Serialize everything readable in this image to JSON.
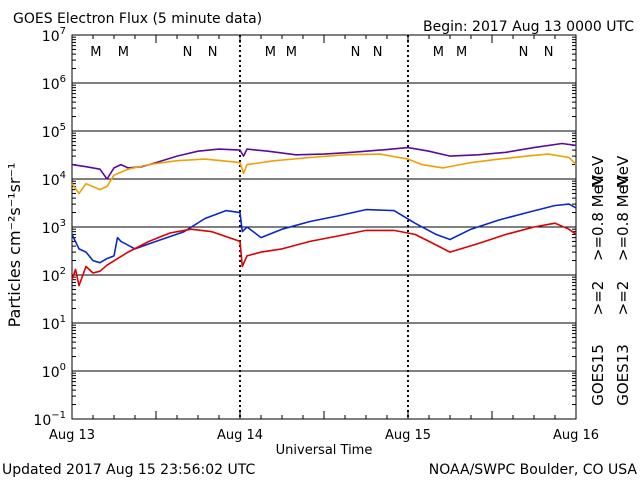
{
  "header": {
    "title": "GOES Electron Flux (5 minute data)",
    "begin": "Begin: 2017 Aug 13 0000 UTC"
  },
  "footer": {
    "updated": "Updated 2017 Aug 15 23:56:02 UTC",
    "source": "NOAA/SWPC Boulder, CO USA"
  },
  "colors": {
    "goes15_high": "#5a0aa0",
    "goes13_high": "#f0a000",
    "goes15_low": "#0a28c8",
    "goes13_low": "#dc0000",
    "magnetopause_m_ref": "#dc0000"
  },
  "chart_data": {
    "type": "line",
    "title": "GOES Electron Flux (5 minute data)",
    "xlabel": "Universal Time",
    "ylabel": "Particles cm⁻²s⁻¹sr⁻¹",
    "y_scale": "log",
    "ylim": [
      0.1,
      10000000
    ],
    "xlim": [
      "2017-08-13 00:00",
      "2017-08-16 00:00"
    ],
    "x_ticks": [
      "Aug 13",
      "Aug 14",
      "Aug 15",
      "Aug 16"
    ],
    "y_tick_exponents": [
      -1,
      0,
      1,
      2,
      3,
      4,
      5,
      6,
      7
    ],
    "threshold": 1000,
    "grid": true,
    "legend_placement": "right, vertical",
    "legend": [
      {
        "name": ">=0.8 MeV",
        "color": "#5a0aa0"
      },
      {
        "name": ">=0.8 MeV",
        "color": "#f0a000"
      },
      {
        "name": ">=2",
        "color": "#0a28c8"
      },
      {
        "name": ">=2",
        "color": "#dc0000"
      }
    ],
    "satellites": [
      "GOES15",
      "GOES13"
    ],
    "unit": "MeV",
    "markers": [
      {
        "label": "M",
        "x": "2017-08-13 03:25",
        "color": "#dc0000"
      },
      {
        "label": "M",
        "x": "2017-08-13 07:20",
        "color": "#0a28c8"
      },
      {
        "label": "N",
        "x": "2017-08-13 16:30",
        "color": "#dc0000"
      },
      {
        "label": "N",
        "x": "2017-08-13 20:05",
        "color": "#0a28c8"
      },
      {
        "label": "M",
        "x": "2017-08-14 04:20",
        "color": "#dc0000"
      },
      {
        "label": "M",
        "x": "2017-08-14 07:20",
        "color": "#0a28c8"
      },
      {
        "label": "N",
        "x": "2017-08-14 16:30",
        "color": "#dc0000"
      },
      {
        "label": "N",
        "x": "2017-08-14 19:40",
        "color": "#0a28c8"
      },
      {
        "label": "M",
        "x": "2017-08-15 04:20",
        "color": "#dc0000"
      },
      {
        "label": "M",
        "x": "2017-08-15 07:40",
        "color": "#0a28c8"
      },
      {
        "label": "N",
        "x": "2017-08-15 16:30",
        "color": "#dc0000"
      },
      {
        "label": "N",
        "x": "2017-08-15 20:05",
        "color": "#0a28c8"
      }
    ],
    "series": [
      {
        "name": "GOES15 >=0.8 MeV",
        "color": "#5a0aa0",
        "x": [
          "2017-08-13 00:00",
          "2017-08-13 02:00",
          "2017-08-13 04:00",
          "2017-08-13 05:00",
          "2017-08-13 06:00",
          "2017-08-13 07:00",
          "2017-08-13 08:00",
          "2017-08-13 10:00",
          "2017-08-13 12:00",
          "2017-08-13 15:00",
          "2017-08-13 18:00",
          "2017-08-13 21:00",
          "2017-08-14 00:00",
          "2017-08-14 00:30",
          "2017-08-14 01:00",
          "2017-08-14 04:00",
          "2017-08-14 08:00",
          "2017-08-14 12:00",
          "2017-08-14 16:00",
          "2017-08-14 20:00",
          "2017-08-15 00:00",
          "2017-08-15 03:00",
          "2017-08-15 06:00",
          "2017-08-15 10:00",
          "2017-08-15 14:00",
          "2017-08-15 18:00",
          "2017-08-15 22:00",
          "2017-08-16 00:00"
        ],
        "y": [
          20000,
          18000,
          16000,
          10000,
          17000,
          20000,
          17000,
          18000,
          22000,
          30000,
          38000,
          42000,
          40000,
          30000,
          42000,
          38000,
          32000,
          33000,
          36000,
          40000,
          45000,
          38000,
          30000,
          32000,
          36000,
          45000,
          55000,
          50000
        ]
      },
      {
        "name": "GOES13 >=0.8 MeV",
        "color": "#f0a000",
        "x": [
          "2017-08-13 00:00",
          "2017-08-13 01:00",
          "2017-08-13 02:00",
          "2017-08-13 04:00",
          "2017-08-13 05:00",
          "2017-08-13 06:00",
          "2017-08-13 08:00",
          "2017-08-13 11:00",
          "2017-08-13 15:00",
          "2017-08-13 19:00",
          "2017-08-14 00:00",
          "2017-08-14 00:30",
          "2017-08-14 01:00",
          "2017-08-14 05:00",
          "2017-08-14 10:00",
          "2017-08-14 15:00",
          "2017-08-14 20:00",
          "2017-08-15 00:00",
          "2017-08-15 02:00",
          "2017-08-15 05:00",
          "2017-08-15 09:00",
          "2017-08-15 13:00",
          "2017-08-15 17:00",
          "2017-08-15 20:00",
          "2017-08-15 23:00",
          "2017-08-16 00:00"
        ],
        "y": [
          8000,
          5000,
          8000,
          6000,
          7000,
          12000,
          16000,
          20000,
          24000,
          26000,
          22000,
          13000,
          20000,
          24000,
          28000,
          32000,
          33000,
          26000,
          20000,
          17000,
          22000,
          26000,
          30000,
          33000,
          28000,
          20000
        ]
      },
      {
        "name": "GOES15 >=2 MeV",
        "color": "#0a28c8",
        "x": [
          "2017-08-13 00:00",
          "2017-08-13 01:00",
          "2017-08-13 02:00",
          "2017-08-13 03:00",
          "2017-08-13 04:00",
          "2017-08-13 05:00",
          "2017-08-13 06:00",
          "2017-08-13 06:30",
          "2017-08-13 07:00",
          "2017-08-13 09:00",
          "2017-08-13 12:00",
          "2017-08-13 16:00",
          "2017-08-13 19:00",
          "2017-08-13 22:00",
          "2017-08-14 00:00",
          "2017-08-14 00:20",
          "2017-08-14 01:00",
          "2017-08-14 03:00",
          "2017-08-14 06:00",
          "2017-08-14 10:00",
          "2017-08-14 14:00",
          "2017-08-14 18:00",
          "2017-08-14 22:00",
          "2017-08-15 01:00",
          "2017-08-15 04:00",
          "2017-08-15 06:00",
          "2017-08-15 09:00",
          "2017-08-15 13:00",
          "2017-08-15 17:00",
          "2017-08-15 21:00",
          "2017-08-15 23:00",
          "2017-08-16 00:00"
        ],
        "y": [
          700,
          350,
          300,
          200,
          180,
          220,
          250,
          600,
          500,
          350,
          500,
          800,
          1500,
          2200,
          2000,
          800,
          1000,
          600,
          900,
          1300,
          1700,
          2300,
          2200,
          1200,
          700,
          550,
          900,
          1400,
          2000,
          2800,
          3000,
          2500
        ]
      },
      {
        "name": "GOES13 >=2 MeV",
        "color": "#dc0000",
        "x": [
          "2017-08-13 00:00",
          "2017-08-13 00:30",
          "2017-08-13 01:00",
          "2017-08-13 02:00",
          "2017-08-13 03:00",
          "2017-08-13 04:00",
          "2017-08-13 05:00",
          "2017-08-13 08:00",
          "2017-08-13 11:00",
          "2017-08-13 14:00",
          "2017-08-13 17:00",
          "2017-08-13 20:00",
          "2017-08-14 00:00",
          "2017-08-14 00:20",
          "2017-08-14 01:00",
          "2017-08-14 03:00",
          "2017-08-14 06:00",
          "2017-08-14 10:00",
          "2017-08-14 14:00",
          "2017-08-14 18:00",
          "2017-08-14 22:00",
          "2017-08-15 01:00",
          "2017-08-15 03:00",
          "2017-08-15 06:00",
          "2017-08-15 10:00",
          "2017-08-15 14:00",
          "2017-08-15 18:00",
          "2017-08-15 21:00",
          "2017-08-15 23:00",
          "2017-08-16 00:00"
        ],
        "y": [
          80,
          130,
          60,
          150,
          110,
          120,
          160,
          300,
          500,
          750,
          900,
          800,
          500,
          150,
          250,
          300,
          350,
          500,
          650,
          850,
          850,
          700,
          500,
          300,
          450,
          700,
          1000,
          1200,
          900,
          700
        ]
      }
    ]
  }
}
